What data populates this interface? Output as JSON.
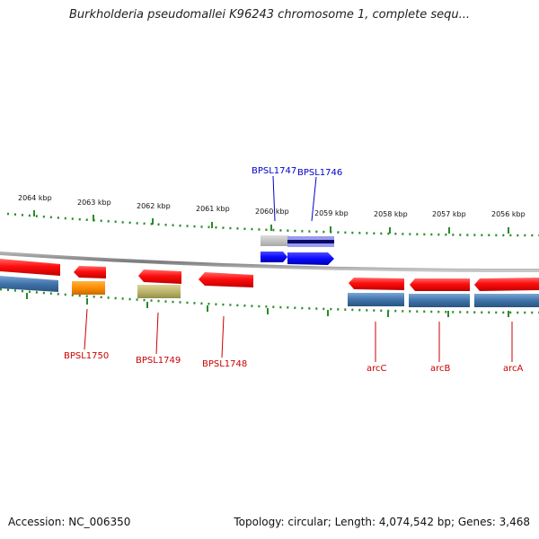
{
  "title": "Burkholderia pseudomallei K96243 chromosome 1, complete sequ...",
  "footer": {
    "accession": "Accession: NC_006350",
    "summary": "Topology: circular; Length: 4,074,542 bp; Genes: 3,468"
  },
  "colors": {
    "forward_gene": "#ff1a1a",
    "reverse_gene": "#ff1a1a",
    "cds_blue": "#4a7fb5",
    "highlight_blue": "#1a1aff",
    "label_red": "#cc0000",
    "label_blue": "#0000cc",
    "tick_green": "#2a8a2a",
    "backbone": "#8a8a8a"
  },
  "scale": {
    "ticks": [
      "2064 kbp",
      "2063 kbp",
      "2062 kbp",
      "2061 kbp",
      "2060 kbp",
      "2059 kbp",
      "2058 kbp",
      "2057 kbp",
      "2056 kbp"
    ]
  },
  "genes": {
    "BPSL1750": "BPSL1750",
    "BPSL1749": "BPSL1749",
    "BPSL1748": "BPSL1748",
    "BPSL1747": "BPSL1747",
    "BPSL1746": "BPSL1746",
    "arcC": "arcC",
    "arcB": "arcB",
    "arcA": "arcA"
  }
}
